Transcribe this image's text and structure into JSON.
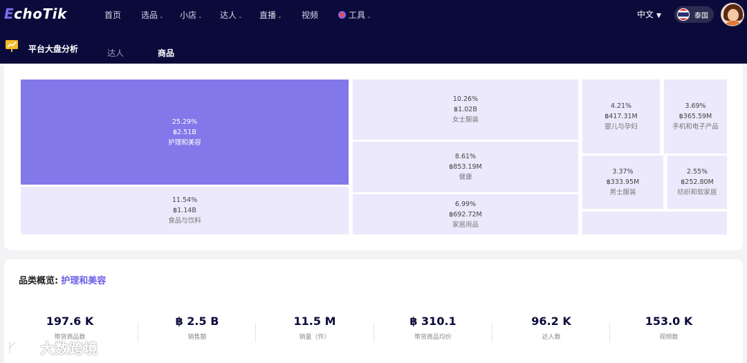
{
  "app": {
    "logo_main": "choTik",
    "logo_initial": "E"
  },
  "nav": {
    "items": [
      {
        "label": "首页",
        "caret": false
      },
      {
        "label": "选品",
        "caret": true
      },
      {
        "label": "小店",
        "caret": true
      },
      {
        "label": "达人",
        "caret": true
      },
      {
        "label": "直播",
        "caret": true
      },
      {
        "label": "视频",
        "caret": false
      },
      {
        "label": "工具",
        "caret": true
      }
    ],
    "language": "中文",
    "country": "泰国"
  },
  "subheader": {
    "title": "平台大盘分析",
    "tabs": [
      {
        "label": "达人",
        "active": false
      },
      {
        "label": "商品",
        "active": true
      }
    ]
  },
  "treemap": [
    {
      "percent": "25.29%",
      "amount": "฿2.51B",
      "label": "护理和美容"
    },
    {
      "percent": "11.54%",
      "amount": "฿1.14B",
      "label": "食品与饮料"
    },
    {
      "percent": "10.26%",
      "amount": "฿1.02B",
      "label": "女士服装"
    },
    {
      "percent": "8.61%",
      "amount": "฿853.19M",
      "label": "健康"
    },
    {
      "percent": "6.99%",
      "amount": "฿692.72M",
      "label": "家居用品"
    },
    {
      "percent": "4.21%",
      "amount": "฿417.31M",
      "label": "婴儿与孕妇"
    },
    {
      "percent": "3.69%",
      "amount": "฿365.59M",
      "label": "手机和电子产品"
    },
    {
      "percent": "3.37%",
      "amount": "฿333.95M",
      "label": "男士服装"
    },
    {
      "percent": "2.55%",
      "amount": "฿252.80M",
      "label": "纺织和软家居"
    }
  ],
  "overview": {
    "title": "品类概览:",
    "category": "护理和美容",
    "metrics": [
      {
        "value": "197.6 K",
        "label": "带货商品数"
      },
      {
        "value": "฿ 2.5 B",
        "label": "销售额"
      },
      {
        "value": "11.5 M",
        "label": "销量（件）"
      },
      {
        "value": "฿ 310.1",
        "label": "带货商品均价"
      },
      {
        "value": "96.2 K",
        "label": "达人数"
      },
      {
        "value": "153.0 K",
        "label": "视频数"
      }
    ]
  },
  "watermark": {
    "text": "大数跨境"
  },
  "colors": {
    "nav_bg": "#0b0b3b",
    "accent": "#7b6cf0",
    "treemap_main": "#8278ea",
    "treemap_cell": "#ebe9fb"
  }
}
